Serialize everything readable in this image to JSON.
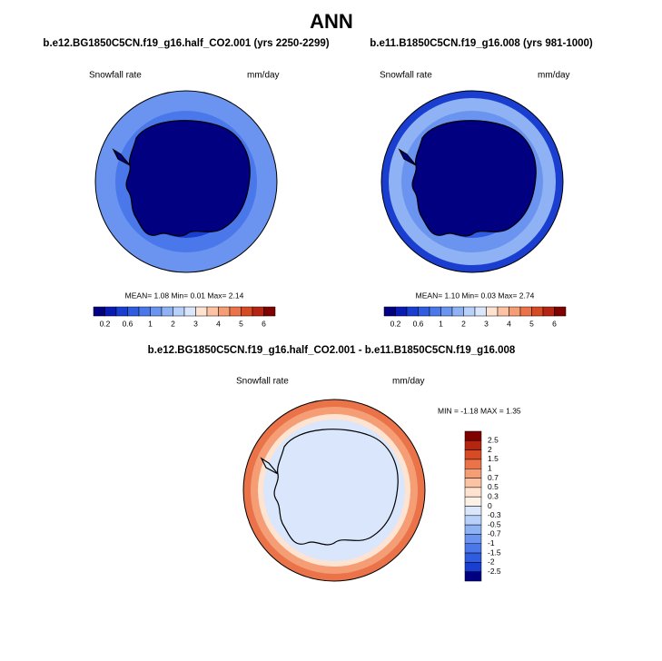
{
  "title": "ANN",
  "panels": [
    {
      "title": "b.e12.BG1850C5CN.f19_g16.half_CO2.001 (yrs 2250-2299)",
      "variable": "Snowfall rate",
      "units": "mm/day",
      "stats": "MEAN=   1.08  Min=   0.01  Max=   2.14",
      "colorbar": {
        "labels": [
          0.2,
          0.6,
          1,
          2,
          3,
          4,
          5,
          6
        ],
        "colors": [
          "#000080",
          "#0a1ab4",
          "#1a3fd0",
          "#2f5ce0",
          "#4a78ea",
          "#6a94f0",
          "#8fb2f5",
          "#b8d0fa",
          "#d9e6fc",
          "#fde3d0",
          "#fbc3a3",
          "#f59e76",
          "#ea7349",
          "#d64a24",
          "#b52612",
          "#800000"
        ]
      }
    },
    {
      "title": "b.e11.B1850C5CN.f19_g16.008 (yrs 981-1000)",
      "variable": "Snowfall rate",
      "units": "mm/day",
      "stats": "MEAN=   1.10  Min=   0.03  Max=   2.74",
      "colorbar": {
        "labels": [
          0.2,
          0.6,
          1,
          2,
          3,
          4,
          5,
          6
        ],
        "colors": [
          "#000080",
          "#0a1ab4",
          "#1a3fd0",
          "#2f5ce0",
          "#4a78ea",
          "#6a94f0",
          "#8fb2f5",
          "#b8d0fa",
          "#d9e6fc",
          "#fde3d0",
          "#fbc3a3",
          "#f59e76",
          "#ea7349",
          "#d64a24",
          "#b52612",
          "#800000"
        ]
      }
    },
    {
      "title": "b.e12.BG1850C5CN.f19_g16.half_CO2.001 - b.e11.B1850C5CN.f19_g16.008",
      "variable": "Snowfall rate",
      "units": "mm/day",
      "stats": "MIN = -1.18 MAX =  1.35",
      "colorbar": {
        "labels": [
          2.5,
          2,
          1.5,
          1,
          0.7,
          0.5,
          0.3,
          0,
          -0.3,
          -0.5,
          -0.7,
          -1,
          -1.5,
          -2,
          -2.5
        ],
        "colors": [
          "#800000",
          "#b52612",
          "#d64a24",
          "#ea7349",
          "#f59e76",
          "#fbc3a3",
          "#fde3d0",
          "#fdf0e6",
          "#d9e6fc",
          "#b8d0fa",
          "#8fb2f5",
          "#6a94f0",
          "#4a78ea",
          "#2f5ce0",
          "#1a3fd0",
          "#000080"
        ]
      }
    }
  ]
}
